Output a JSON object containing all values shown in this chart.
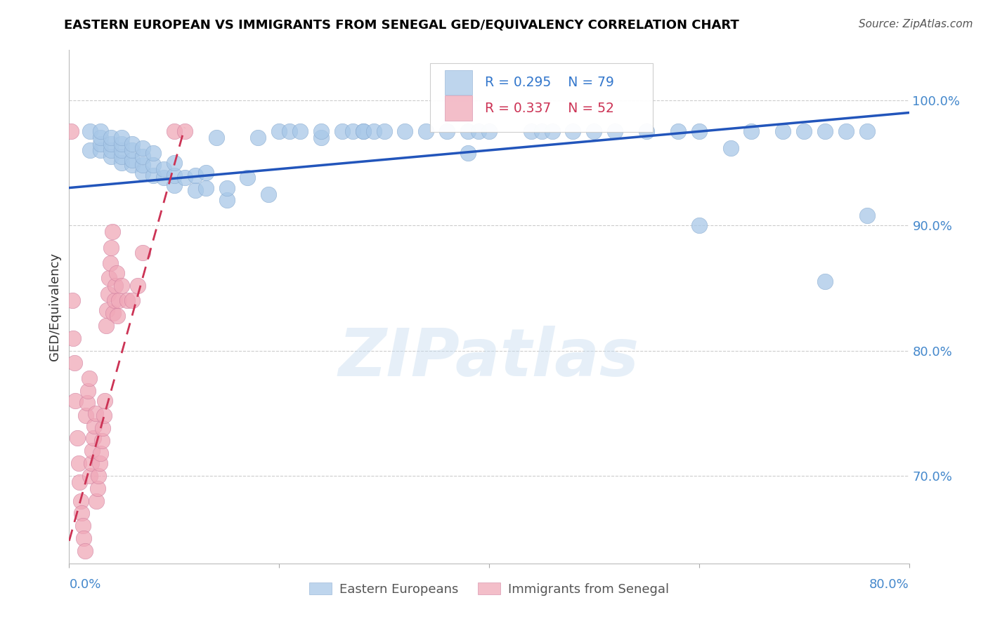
{
  "title": "EASTERN EUROPEAN VS IMMIGRANTS FROM SENEGAL GED/EQUIVALENCY CORRELATION CHART",
  "source": "Source: ZipAtlas.com",
  "ylabel": "GED/Equivalency",
  "ytick_labels": [
    "70.0%",
    "80.0%",
    "90.0%",
    "100.0%"
  ],
  "ytick_values": [
    0.7,
    0.8,
    0.9,
    1.0
  ],
  "xlim": [
    0.0,
    0.8
  ],
  "ylim": [
    0.63,
    1.04
  ],
  "legend_blue_R": "R = 0.295",
  "legend_blue_N": "N = 79",
  "legend_pink_R": "R = 0.337",
  "legend_pink_N": "N = 52",
  "legend_label_blue": "Eastern Europeans",
  "legend_label_pink": "Immigrants from Senegal",
  "blue_color": "#a8c8e8",
  "pink_color": "#f0a8b8",
  "blue_line_color": "#2255bb",
  "pink_line_color": "#cc3355",
  "pink_line_dashed": true,
  "watermark_text": "ZIPatlas",
  "blue_scatter_x": [
    0.02,
    0.02,
    0.03,
    0.03,
    0.03,
    0.03,
    0.04,
    0.04,
    0.04,
    0.04,
    0.05,
    0.05,
    0.05,
    0.05,
    0.05,
    0.06,
    0.06,
    0.06,
    0.06,
    0.07,
    0.07,
    0.07,
    0.07,
    0.08,
    0.08,
    0.08,
    0.09,
    0.09,
    0.1,
    0.1,
    0.1,
    0.11,
    0.12,
    0.12,
    0.13,
    0.13,
    0.14,
    0.15,
    0.15,
    0.17,
    0.18,
    0.19,
    0.2,
    0.21,
    0.22,
    0.24,
    0.24,
    0.26,
    0.27,
    0.28,
    0.28,
    0.29,
    0.3,
    0.32,
    0.34,
    0.36,
    0.38,
    0.38,
    0.39,
    0.4,
    0.44,
    0.45,
    0.46,
    0.48,
    0.5,
    0.52,
    0.55,
    0.58,
    0.6,
    0.63,
    0.68,
    0.7,
    0.72,
    0.74,
    0.76,
    0.6,
    0.65,
    0.72,
    0.76
  ],
  "blue_scatter_y": [
    0.96,
    0.975,
    0.96,
    0.965,
    0.97,
    0.975,
    0.955,
    0.96,
    0.965,
    0.97,
    0.95,
    0.955,
    0.96,
    0.965,
    0.97,
    0.948,
    0.952,
    0.96,
    0.965,
    0.942,
    0.948,
    0.955,
    0.962,
    0.94,
    0.948,
    0.958,
    0.938,
    0.945,
    0.932,
    0.94,
    0.95,
    0.938,
    0.928,
    0.94,
    0.93,
    0.942,
    0.97,
    0.92,
    0.93,
    0.938,
    0.97,
    0.925,
    0.975,
    0.975,
    0.975,
    0.97,
    0.975,
    0.975,
    0.975,
    0.975,
    0.975,
    0.975,
    0.975,
    0.975,
    0.975,
    0.975,
    0.975,
    0.958,
    0.975,
    0.975,
    0.975,
    0.975,
    0.975,
    0.975,
    0.975,
    0.975,
    0.975,
    0.975,
    0.975,
    0.962,
    0.975,
    0.975,
    0.975,
    0.975,
    0.975,
    0.9,
    0.975,
    0.855,
    0.908
  ],
  "pink_scatter_x": [
    0.002,
    0.003,
    0.004,
    0.005,
    0.006,
    0.008,
    0.009,
    0.01,
    0.011,
    0.012,
    0.013,
    0.014,
    0.015,
    0.016,
    0.017,
    0.018,
    0.019,
    0.02,
    0.021,
    0.022,
    0.023,
    0.024,
    0.025,
    0.026,
    0.027,
    0.028,
    0.029,
    0.03,
    0.031,
    0.032,
    0.033,
    0.034,
    0.035,
    0.036,
    0.037,
    0.038,
    0.039,
    0.04,
    0.041,
    0.042,
    0.043,
    0.044,
    0.045,
    0.046,
    0.047,
    0.05,
    0.055,
    0.06,
    0.065,
    0.07,
    0.1,
    0.11
  ],
  "pink_scatter_y": [
    0.975,
    0.84,
    0.81,
    0.79,
    0.76,
    0.73,
    0.71,
    0.695,
    0.68,
    0.67,
    0.66,
    0.65,
    0.64,
    0.748,
    0.758,
    0.768,
    0.778,
    0.7,
    0.71,
    0.72,
    0.73,
    0.74,
    0.75,
    0.68,
    0.69,
    0.7,
    0.71,
    0.718,
    0.728,
    0.738,
    0.748,
    0.76,
    0.82,
    0.832,
    0.845,
    0.858,
    0.87,
    0.882,
    0.895,
    0.83,
    0.84,
    0.852,
    0.862,
    0.828,
    0.84,
    0.852,
    0.84,
    0.84,
    0.852,
    0.878,
    0.975,
    0.975
  ],
  "blue_line_x": [
    0.0,
    0.8
  ],
  "blue_line_y": [
    0.93,
    0.99
  ],
  "pink_line_x": [
    0.0,
    0.11
  ],
  "pink_line_y": [
    0.648,
    0.978
  ]
}
